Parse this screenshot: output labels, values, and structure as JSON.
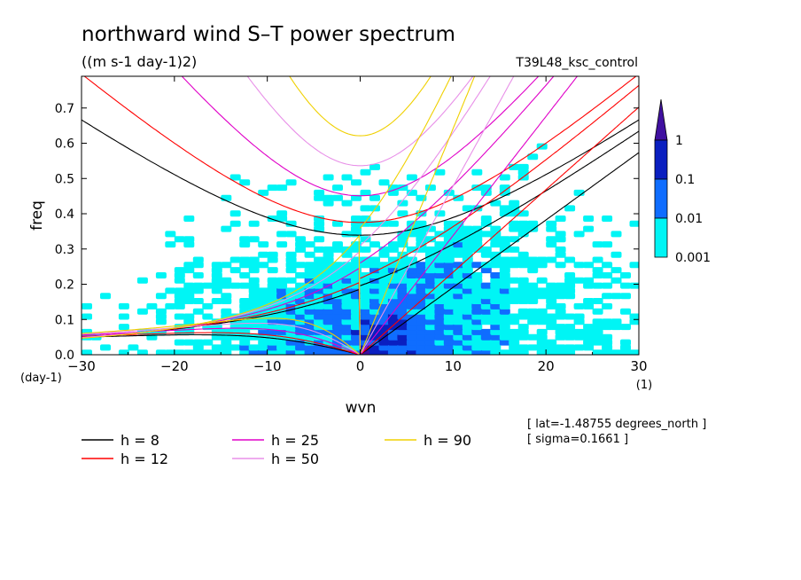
{
  "chart_data": {
    "type": "heatmap",
    "title": "northward wind S–T power spectrum",
    "units": "((m s-1 day-1)2)",
    "run_label": "T39L48_ksc_control",
    "xlabel": "wvn",
    "ylabel": "freq",
    "x_unit": "(1)",
    "y_unit": "(day-1)",
    "xlim": [
      -30,
      30
    ],
    "ylim": [
      0,
      0.79
    ],
    "xticks": [
      "−30",
      "−20",
      "−10",
      "0",
      "10",
      "20",
      "30"
    ],
    "xtick_values": [
      -30,
      -20,
      -10,
      0,
      10,
      20,
      30
    ],
    "yticks": [
      "0.0",
      "0.1",
      "0.2",
      "0.3",
      "0.4",
      "0.5",
      "0.6",
      "0.7"
    ],
    "ytick_values": [
      0,
      0.1,
      0.2,
      0.3,
      0.4,
      0.5,
      0.6,
      0.7
    ],
    "colorbar": {
      "labels": [
        "1",
        "0.1",
        "0.01",
        "0.001"
      ],
      "levels": [
        0.001,
        0.01,
        0.1,
        1
      ],
      "colors": [
        "#00f5f5",
        "#0f6dff",
        "#0a1fc0",
        "#4010a0"
      ]
    },
    "dispersion_series": [
      {
        "name": "h = 8",
        "h": 8,
        "color": "#000000"
      },
      {
        "name": "h = 12",
        "h": 12,
        "color": "#ff0000"
      },
      {
        "name": "h = 25",
        "h": 25,
        "color": "#e000c8"
      },
      {
        "name": "h = 50",
        "h": 50,
        "color": "#e890e8"
      },
      {
        "name": "h = 90",
        "h": 90,
        "color": "#f0d000"
      }
    ],
    "info_lines": [
      "[ lat=-1.48755 degrees_north ]",
      "[ sigma=0.1661 ]"
    ]
  }
}
